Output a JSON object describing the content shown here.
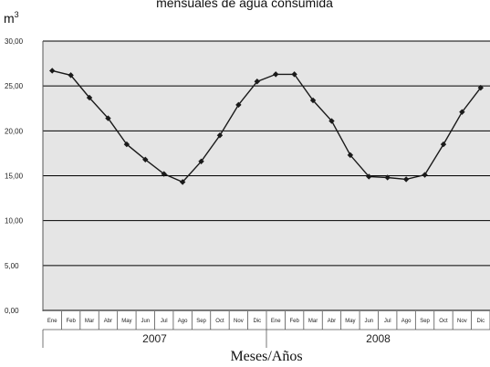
{
  "header_fragment": "mensuales de agua consumida",
  "chart_data": {
    "type": "line",
    "title": "",
    "y_unit": "m",
    "y_unit_sup": "3",
    "xlabel": "Meses/Años",
    "ylim": [
      0,
      30
    ],
    "y_ticks": [
      "0,00",
      "5,00",
      "10,00",
      "15,00",
      "20,00",
      "25,00",
      "30,00"
    ],
    "grid": true,
    "months": [
      "Ene",
      "Feb",
      "Mar",
      "Abr",
      "May",
      "Jun",
      "Jul",
      "Ago",
      "Sep",
      "Oct",
      "Nov",
      "Dic"
    ],
    "years": [
      "2007",
      "2008"
    ],
    "series": [
      {
        "values": [
          26.7,
          26.2,
          23.7,
          21.4,
          18.5,
          16.8,
          15.2,
          14.3,
          16.6,
          19.5,
          22.9,
          25.5,
          26.3,
          26.3,
          23.4,
          21.1,
          17.3,
          14.9,
          14.8,
          14.6,
          15.1,
          18.5,
          22.1,
          24.8
        ]
      }
    ],
    "colors": {
      "line": "#1a1a1a",
      "marker": "#1a1a1a",
      "grid": "#000000",
      "plot_bg": "#e5e5e5"
    }
  }
}
